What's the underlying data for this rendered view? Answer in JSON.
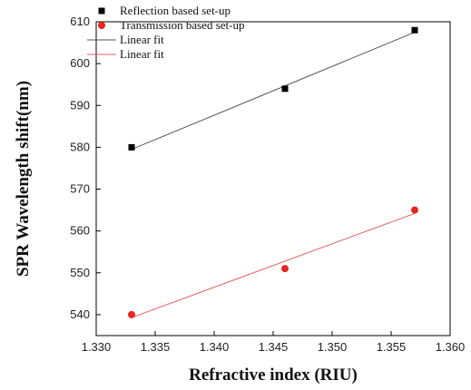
{
  "chart_data": {
    "type": "scatter",
    "title": "",
    "xlabel": "Refractive index (RIU)",
    "ylabel": "SPR Wavelength shift(nm)",
    "xlim": [
      1.33,
      1.36
    ],
    "ylim": [
      535,
      610
    ],
    "xticks": [
      "1.330",
      "1.335",
      "1.340",
      "1.345",
      "1.350",
      "1.355",
      "1.360"
    ],
    "yticks": [
      "540",
      "550",
      "560",
      "570",
      "580",
      "590",
      "600",
      "610"
    ],
    "grid": false,
    "legend_position": "top-left",
    "series": [
      {
        "name": "Reflection based set-up",
        "marker": "square",
        "color": "#000000",
        "x": [
          1.333,
          1.346,
          1.357
        ],
        "y": [
          580,
          594,
          608
        ]
      },
      {
        "name": "Transmission based set-up",
        "marker": "circle",
        "color": "#e8261f",
        "x": [
          1.333,
          1.346,
          1.357
        ],
        "y": [
          540,
          551,
          565
        ]
      }
    ],
    "fits": [
      {
        "name": "Linear fit",
        "color": "#555555",
        "x": [
          1.333,
          1.357
        ],
        "y": [
          579.5,
          607.5
        ]
      },
      {
        "name": "Linear fit",
        "color": "#e06060",
        "x": [
          1.333,
          1.357
        ],
        "y": [
          539.3,
          564.2
        ]
      }
    ]
  }
}
